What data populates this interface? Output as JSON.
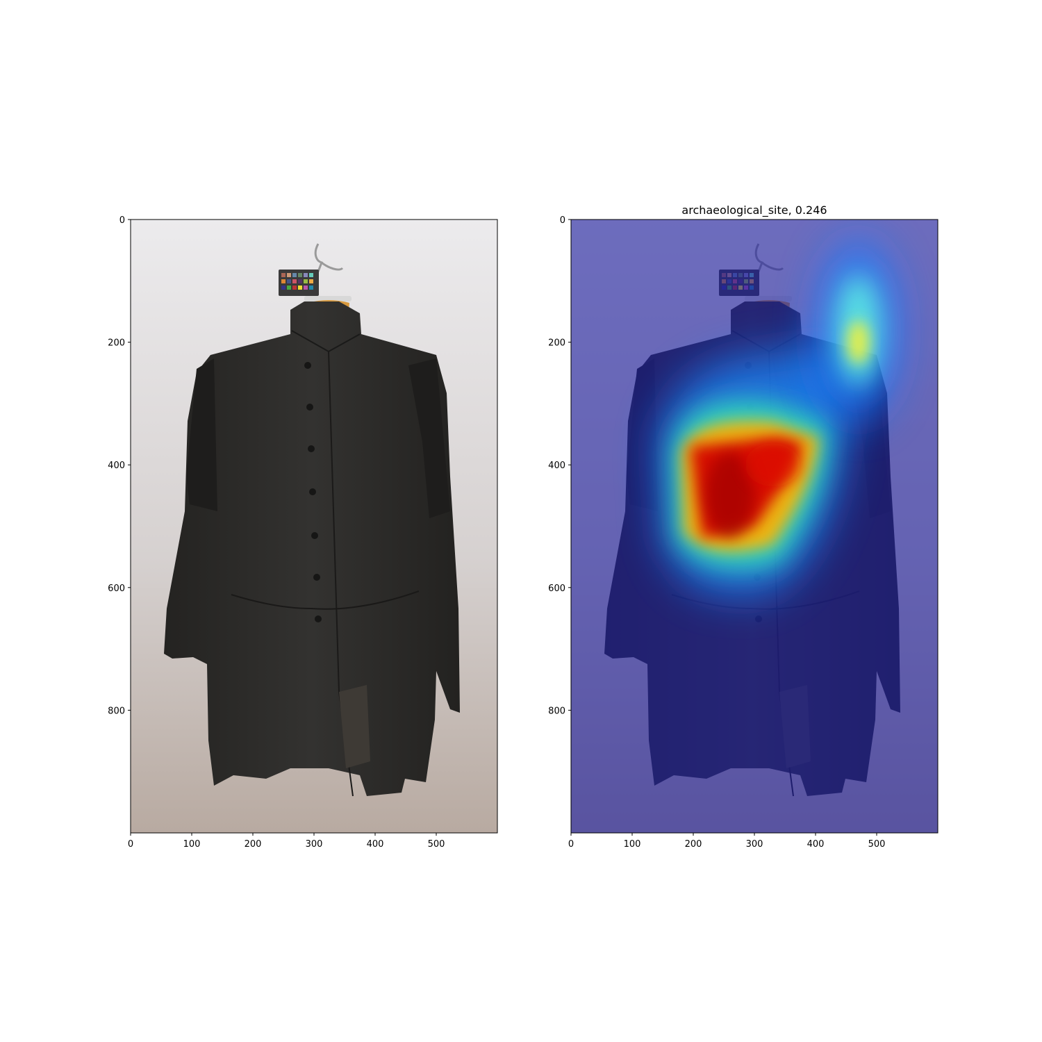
{
  "chart_data": [
    {
      "type": "image",
      "title": "",
      "xlim": [
        0,
        600
      ],
      "ylim": [
        1000,
        0
      ],
      "xticks": [
        0,
        100,
        200,
        300,
        400,
        500
      ],
      "yticks": [
        0,
        200,
        400,
        600,
        800
      ],
      "image": {
        "subject": "black coat on hanger with color checker card",
        "background": "light gray"
      }
    },
    {
      "type": "heatmap",
      "title": "archaeological_site, 0.246",
      "xlim": [
        0,
        600
      ],
      "ylim": [
        1000,
        0
      ],
      "xticks": [
        0,
        100,
        200,
        300,
        400,
        500
      ],
      "yticks": [
        0,
        200,
        400,
        600,
        800
      ],
      "colormap": "jet",
      "hotspots": [
        {
          "x": 260,
          "y": 450,
          "level": 1.0
        },
        {
          "x": 330,
          "y": 400,
          "level": 0.85
        },
        {
          "x": 470,
          "y": 190,
          "level": 0.6
        }
      ]
    }
  ],
  "colors": {
    "coat": "#2b2a28",
    "background_top": "#e9e7e8",
    "background_bottom": "#b9aba2",
    "overlay_base": "#3a3a9a",
    "hanger": "#d9a14a"
  }
}
